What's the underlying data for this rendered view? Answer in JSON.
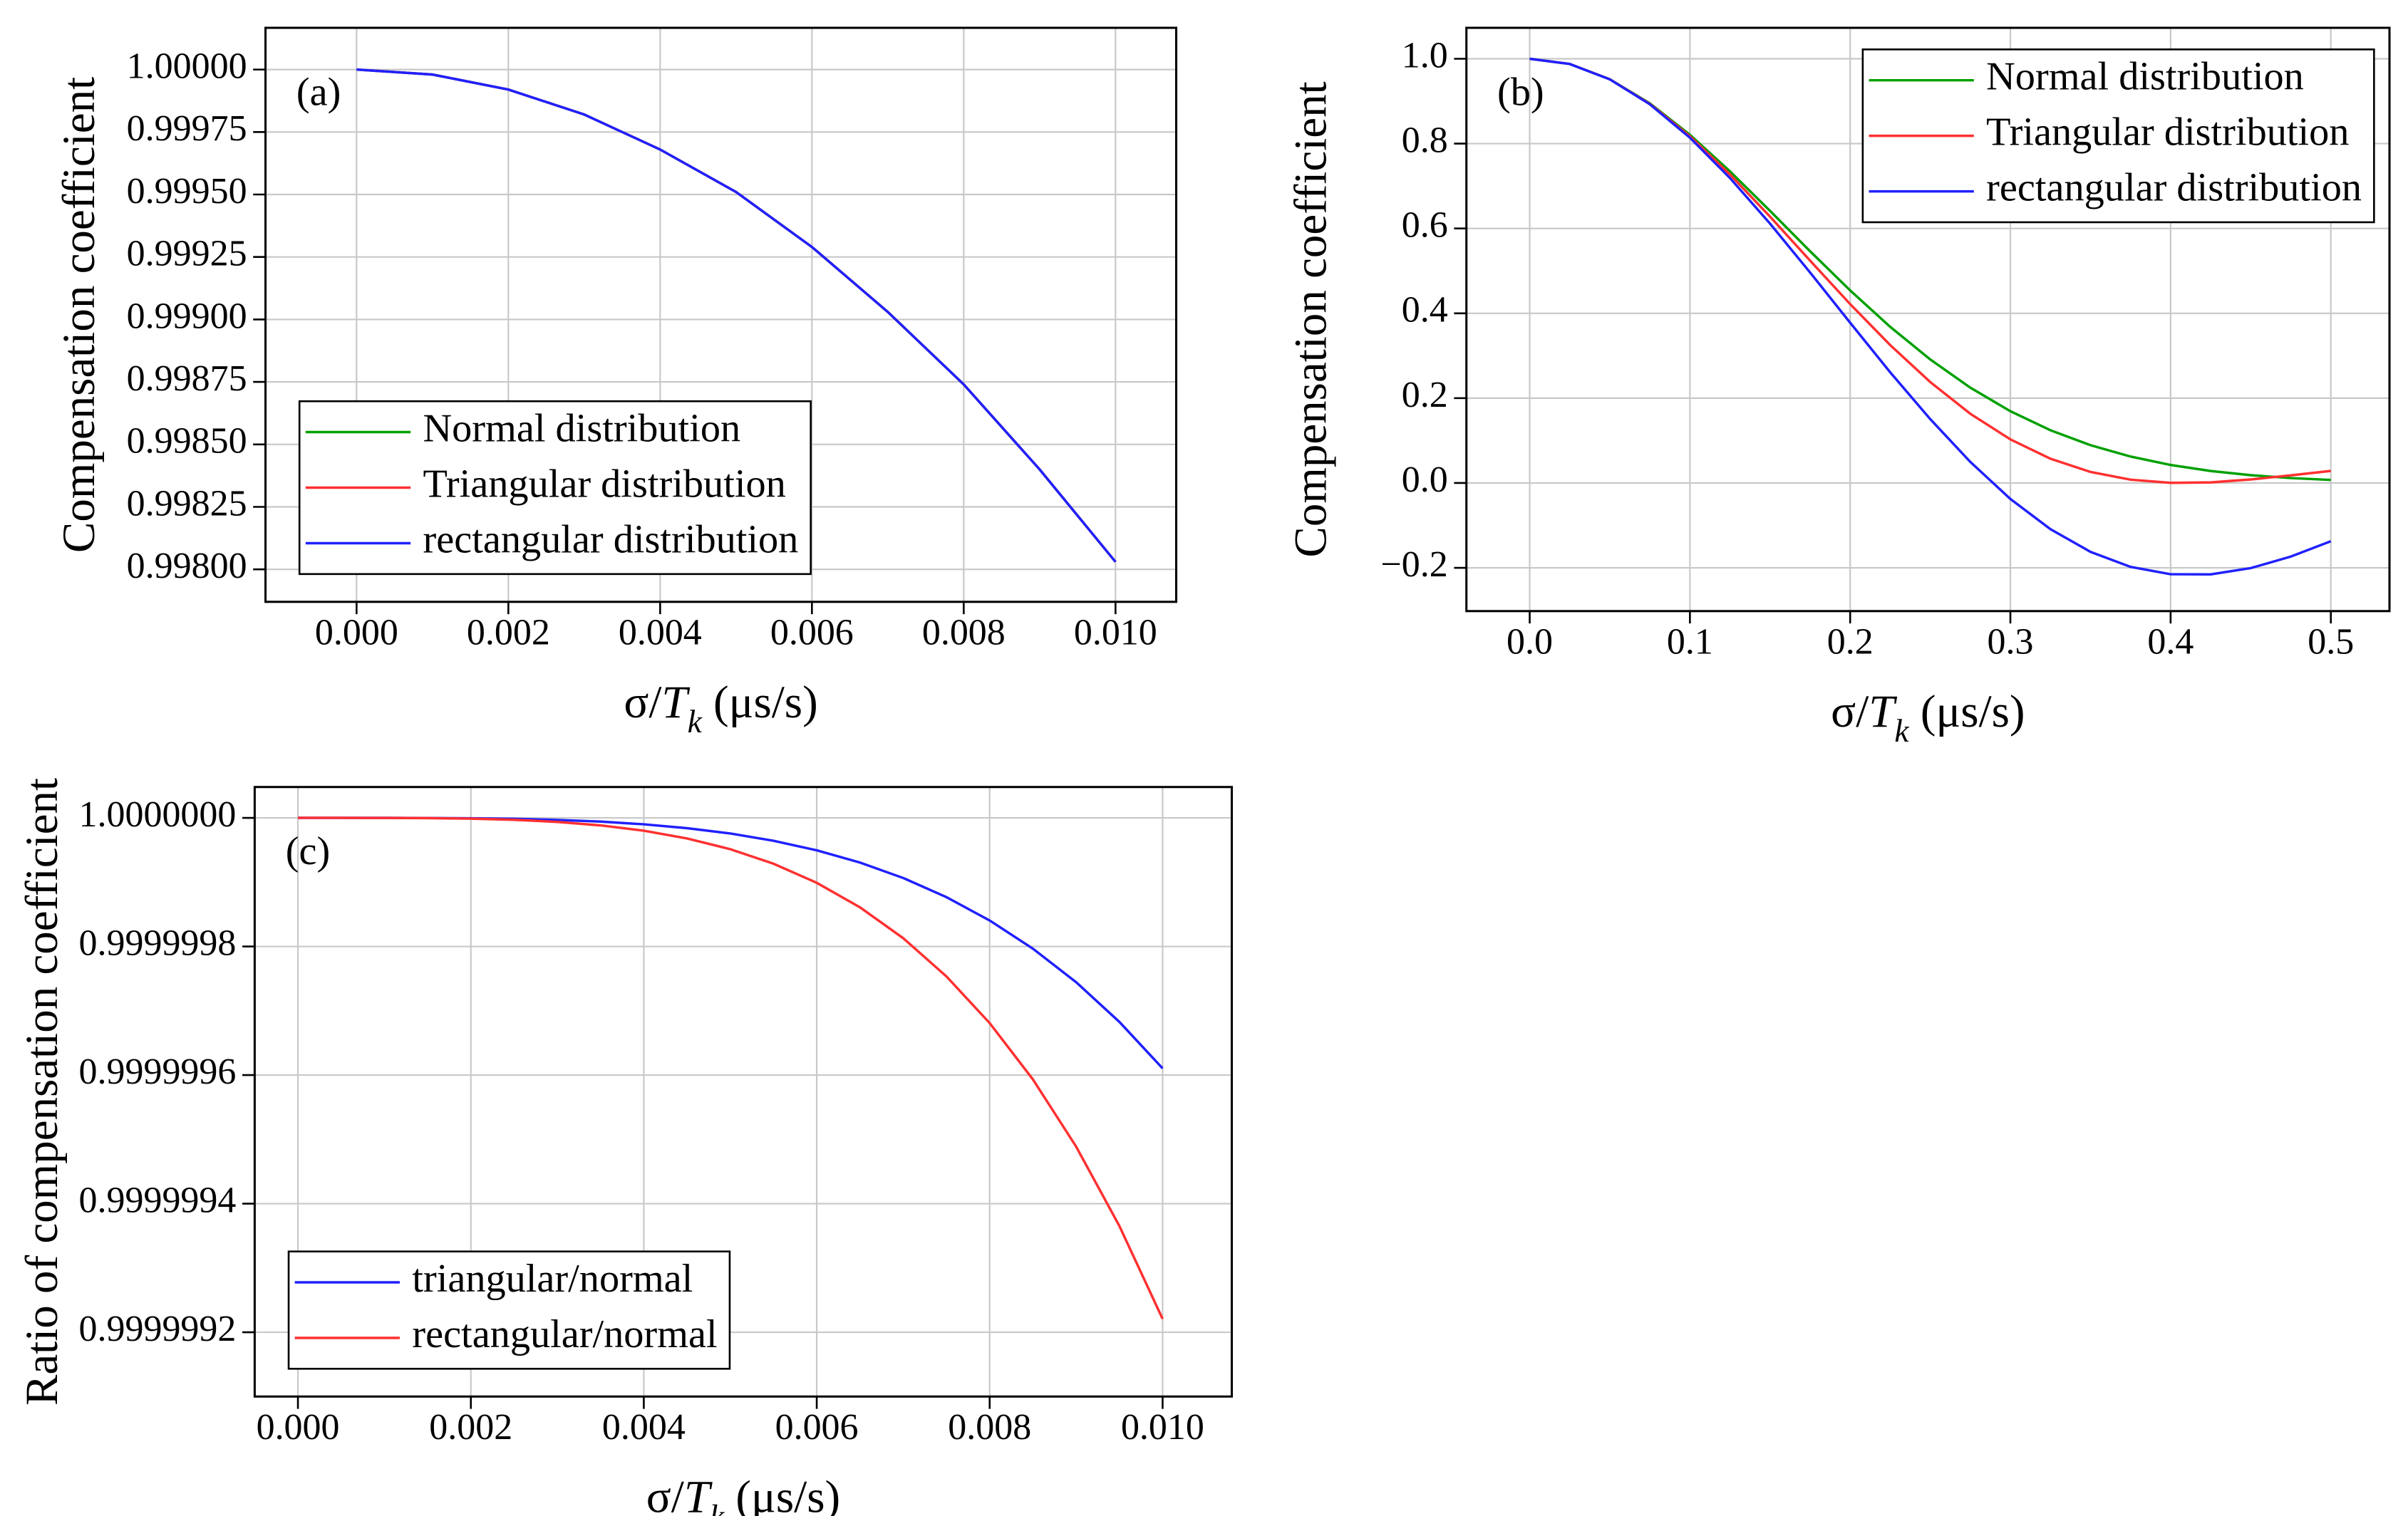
{
  "chart_data": [
    {
      "type": "line",
      "annotation": "(a)",
      "y_label": "Compensation coefficient",
      "x_label": [
        "σ/",
        "T",
        "k",
        " (μs/s)"
      ],
      "x": [
        0,
        0.001,
        0.002,
        0.003,
        0.004,
        0.005,
        0.006,
        0.007,
        0.008,
        0.009,
        0.01
      ],
      "series": [
        {
          "name": "Normal distribution",
          "color": "#00a000",
          "values": [
            1,
            0.99998,
            0.99992,
            0.99982,
            0.99968,
            0.99951,
            0.99929,
            0.99903,
            0.99874,
            0.9984,
            0.99803
          ]
        },
        {
          "name": "Triangular distribution",
          "color": "#ff3030",
          "values": [
            1,
            0.99998,
            0.99992,
            0.99982,
            0.99968,
            0.99951,
            0.99929,
            0.99903,
            0.99874,
            0.9984,
            0.99803
          ]
        },
        {
          "name": "rectangular distribution",
          "color": "#2020ff",
          "values": [
            1,
            0.99998,
            0.99992,
            0.99982,
            0.99968,
            0.99951,
            0.99929,
            0.99903,
            0.99874,
            0.9984,
            0.99803
          ]
        }
      ],
      "xlim": [
        -0.0012,
        0.0108
      ],
      "ylim": [
        0.99787,
        1.000167
      ],
      "xticks": [
        {
          "value": 0,
          "label": "0.000"
        },
        {
          "value": 0.002,
          "label": "0.002"
        },
        {
          "value": 0.004,
          "label": "0.004"
        },
        {
          "value": 0.006,
          "label": "0.006"
        },
        {
          "value": 0.008,
          "label": "0.008"
        },
        {
          "value": 0.01,
          "label": "0.010"
        }
      ],
      "yticks": [
        {
          "value": 0.998,
          "label": "0.99800"
        },
        {
          "value": 0.99825,
          "label": "0.99825"
        },
        {
          "value": 0.9985,
          "label": "0.99850"
        },
        {
          "value": 0.99875,
          "label": "0.99875"
        },
        {
          "value": 0.999,
          "label": "0.99900"
        },
        {
          "value": 0.99925,
          "label": "0.99925"
        },
        {
          "value": 0.9995,
          "label": "0.99950"
        },
        {
          "value": 0.99975,
          "label": "0.99975"
        },
        {
          "value": 1,
          "label": "1.00000"
        }
      ],
      "grid": true,
      "legend": "lower left"
    },
    {
      "type": "line",
      "annotation": "(b)",
      "y_label": "Compensation coefficient",
      "x_label": [
        "σ/",
        "T",
        "k",
        " (μs/s)"
      ],
      "x": [
        0,
        0.025,
        0.05,
        0.075,
        0.1,
        0.125,
        0.15,
        0.175,
        0.2,
        0.225,
        0.25,
        0.275,
        0.3,
        0.325,
        0.35,
        0.375,
        0.4,
        0.425,
        0.45,
        0.475,
        0.5
      ],
      "series": [
        {
          "name": "Normal distribution",
          "color": "#00a000",
          "values": [
            1,
            0.9877,
            0.9518,
            0.8949,
            0.8209,
            0.7346,
            0.6414,
            0.5463,
            0.454,
            0.3681,
            0.2912,
            0.2247,
            0.1692,
            0.1243,
            0.0891,
            0.0623,
            0.0425,
            0.0283,
            0.0184,
            0.0116,
            0.0072
          ]
        },
        {
          "name": "Triangular distribution",
          "color": "#ff3030",
          "values": [
            1,
            0.9878,
            0.9516,
            0.8937,
            0.8173,
            0.7274,
            0.6279,
            0.5242,
            0.4217,
            0.3251,
            0.2379,
            0.1632,
            0.1028,
            0.0572,
            0.026,
            0.0078,
            0.0004,
            0.0015,
            0.0083,
            0.018,
            0.0285
          ]
        },
        {
          "name": "rectangular distribution",
          "color": "#2020ff",
          "values": [
            1,
            0.9877,
            0.9515,
            0.8927,
            0.814,
            0.7189,
            0.6114,
            0.4962,
            0.3778,
            0.2609,
            0.1505,
            0.0496,
            -0.0377,
            -0.1088,
            -0.1623,
            -0.1978,
            -0.2151,
            -0.2154,
            -0.2007,
            -0.1735,
            -0.1373
          ]
        }
      ],
      "xlim": [
        -0.0395,
        0.5366
      ],
      "ylim": [
        -0.302,
        1.073
      ],
      "xticks": [
        {
          "value": 0,
          "label": "0.0"
        },
        0.1,
        0.2,
        0.3,
        0.4,
        0.5
      ],
      "yticks": [
        {
          "value": -0.2,
          "label": "−0.2"
        },
        {
          "value": 0,
          "label": "0.0"
        },
        0.2,
        0.4,
        0.6,
        0.8,
        {
          "value": 1,
          "label": "1.0"
        }
      ],
      "grid": true,
      "legend": "upper right"
    },
    {
      "type": "line",
      "annotation": "(c)",
      "y_label": "Ratio of compensation coefficient",
      "x_label": [
        "σ/",
        "T",
        "k",
        " (μs/s)"
      ],
      "x": [
        0,
        0.0005,
        0.001,
        0.0015,
        0.002,
        0.0025,
        0.003,
        0.0035,
        0.004,
        0.0045,
        0.005,
        0.0055,
        0.006,
        0.0065,
        0.007,
        0.0075,
        0.008,
        0.0085,
        0.009,
        0.0095,
        0.01
      ],
      "series": [
        {
          "name": "triangular/normal",
          "color": "#2020ff",
          "values": [
            1,
            1,
            1,
            0.9999999998,
            0.9999999994,
            0.9999999985,
            0.9999999968,
            0.9999999942,
            0.99999999,
            0.999999984,
            0.9999999757,
            0.9999999644,
            0.9999999495,
            0.9999999305,
            0.9999999065,
            0.9999998767,
            0.9999998404,
            0.9999997966,
            0.9999997444,
            0.9999996827,
            0.9999996104
          ]
        },
        {
          "name": "rectangular/normal",
          "color": "#ff3030",
          "values": [
            1,
            1,
            0.9999999999,
            0.9999999996,
            0.9999999988,
            0.999999997,
            0.9999999937,
            0.9999999883,
            0.99999998,
            0.999999968,
            0.9999999513,
            0.9999999287,
            0.999999899,
            0.9999998609,
            0.9999998129,
            0.9999997534,
            0.9999996808,
            0.9999995932,
            0.9999994887,
            0.9999993653,
            0.9999992207
          ]
        }
      ],
      "xlim": [
        -0.0005,
        0.0108
      ],
      "ylim": [
        0.9999991,
        1.000000048
      ],
      "xticks": [
        {
          "value": 0,
          "label": "0.000"
        },
        {
          "value": 0.002,
          "label": "0.002"
        },
        {
          "value": 0.004,
          "label": "0.004"
        },
        {
          "value": 0.006,
          "label": "0.006"
        },
        {
          "value": 0.008,
          "label": "0.008"
        },
        {
          "value": 0.01,
          "label": "0.010"
        }
      ],
      "yticks": [
        {
          "value": 0.9999992,
          "label": "0.9999992"
        },
        {
          "value": 0.9999994,
          "label": "0.9999994"
        },
        {
          "value": 0.9999996,
          "label": "0.9999996"
        },
        {
          "value": 0.9999998,
          "label": "0.9999998"
        },
        {
          "value": 1,
          "label": "1.0000000"
        }
      ],
      "grid": true,
      "legend": "lower left"
    }
  ]
}
